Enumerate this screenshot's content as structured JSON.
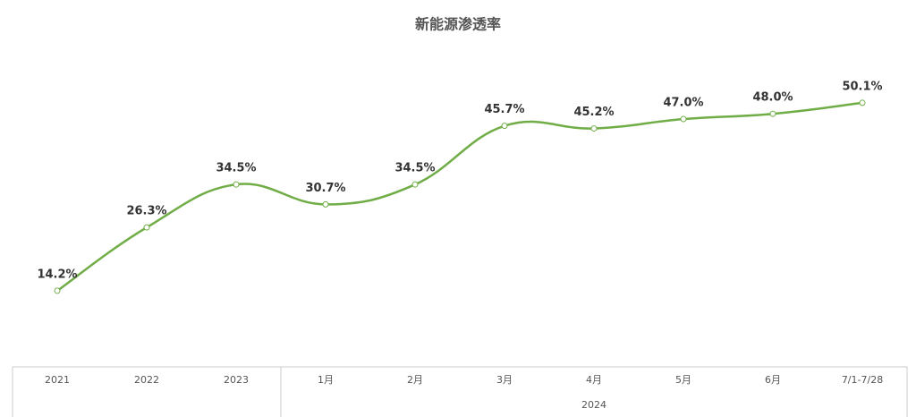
{
  "chart_data": {
    "type": "line",
    "title": "新能源渗透率",
    "categories": [
      "2021",
      "2022",
      "2023",
      "1月",
      "2月",
      "3月",
      "4月",
      "5月",
      "6月",
      "7/1-7/28"
    ],
    "group_label": "2024",
    "series": [
      {
        "name": "新能源渗透率",
        "color": "#70ad47",
        "values": [
          14.2,
          26.3,
          34.5,
          30.7,
          34.5,
          45.7,
          45.2,
          47.0,
          48.0,
          50.1
        ],
        "value_labels": [
          "14.2%",
          "26.3%",
          "34.5%",
          "30.7%",
          "34.5%",
          "45.7%",
          "45.2%",
          "47.0%",
          "48.0%",
          "50.1%"
        ]
      }
    ],
    "ylim": [
      0,
      60
    ]
  }
}
